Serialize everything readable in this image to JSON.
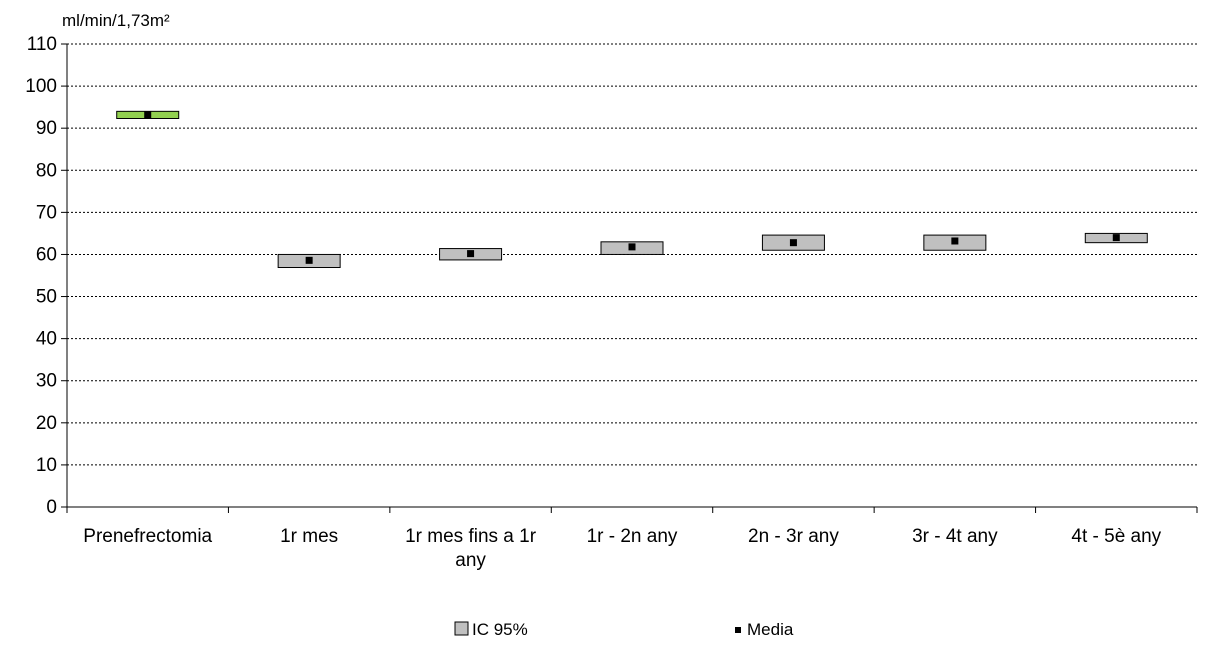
{
  "chart_data": {
    "type": "range_bar",
    "unit_label": "ml/min/1,73m²",
    "ylim": [
      0,
      110
    ],
    "yticks": [
      0,
      10,
      20,
      30,
      40,
      50,
      60,
      70,
      80,
      90,
      100,
      110
    ],
    "grid": "horizontal-dashed",
    "categories": [
      "Prenefrectomia",
      "1r mes",
      "1r mes fins a 1r any",
      "1r - 2n any",
      "2n - 3r any",
      "3r - 4t any",
      "4t - 5è any"
    ],
    "series": [
      {
        "name": "IC 95%",
        "low": [
          92.3,
          56.9,
          58.7,
          60.0,
          61.0,
          61.0,
          62.8
        ],
        "high": [
          94.0,
          60.0,
          61.4,
          63.0,
          64.6,
          64.6,
          65.0
        ]
      },
      {
        "name": "Media",
        "values": [
          93.2,
          58.6,
          60.2,
          61.8,
          62.8,
          63.2,
          64.0
        ]
      }
    ],
    "legend_position": "bottom",
    "colors": {
      "ic_default": "#c0c0c0",
      "ic_highlight": "#92d050",
      "media": "#000000",
      "grid": "#000000"
    }
  }
}
